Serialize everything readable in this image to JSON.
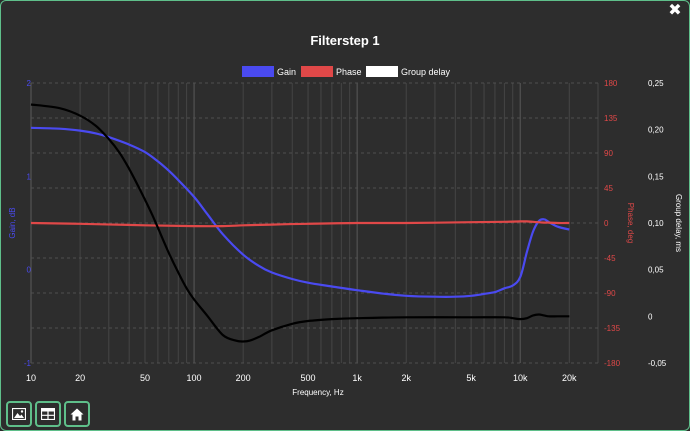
{
  "window": {
    "close_label": "✖"
  },
  "toolbar": [
    {
      "name": "image-button",
      "icon": "image-icon"
    },
    {
      "name": "table-button",
      "icon": "table-icon"
    },
    {
      "name": "home-button",
      "icon": "home-icon"
    }
  ],
  "chart_data": {
    "type": "line",
    "title": "Filterstep 1",
    "xlabel": "Frequency, Hz",
    "x_scale": "log",
    "xlim": [
      10,
      30000
    ],
    "x_ticks": [
      10,
      20,
      50,
      100,
      200,
      500,
      1000,
      2000,
      5000,
      10000,
      20000
    ],
    "x_tick_labels": [
      "10",
      "20",
      "50",
      "100",
      "200",
      "500",
      "1k",
      "2k",
      "5k",
      "10k",
      "20k"
    ],
    "axes": {
      "gain": {
        "label": "Gain, dB",
        "range": [
          -1,
          2
        ],
        "ticks": [
          -1,
          0,
          1,
          2
        ],
        "tick_labels": [
          "-1",
          "0",
          "1",
          "2"
        ],
        "color": "#4a4af0"
      },
      "phase": {
        "label": "Phase, deg",
        "range": [
          -180,
          180
        ],
        "ticks": [
          -180,
          -135,
          -90,
          -45,
          0,
          45,
          90,
          135,
          180
        ],
        "tick_labels": [
          "-180",
          "-135",
          "-90",
          "-45",
          "0",
          "45",
          "90",
          "135",
          "180"
        ],
        "color": "#e04848"
      },
      "delay": {
        "label": "Group delay, ms",
        "range": [
          -0.05,
          0.25
        ],
        "ticks": [
          -0.05,
          0,
          0.05,
          0.1,
          0.15,
          0.2,
          0.25
        ],
        "tick_labels": [
          "-0,05",
          "0",
          "0,05",
          "0,10",
          "0,15",
          "0,20",
          "0,25"
        ],
        "color": "#ffffff"
      }
    },
    "legend": {
      "placement": "top-center"
    },
    "grid": true,
    "series": [
      {
        "name": "Gain",
        "axis": "gain",
        "color": "#4a4af0",
        "x": [
          10,
          15,
          20,
          25,
          30,
          40,
          50,
          60,
          70,
          80,
          100,
          120,
          150,
          200,
          250,
          300,
          400,
          500,
          700,
          1000,
          1500,
          2000,
          3000,
          4000,
          5000,
          6000,
          7000,
          8000,
          9000,
          10000,
          11000,
          12000,
          13000,
          14000,
          15000,
          17000,
          20000
        ],
        "y": [
          1.52,
          1.51,
          1.49,
          1.46,
          1.42,
          1.34,
          1.26,
          1.16,
          1.06,
          0.96,
          0.78,
          0.6,
          0.38,
          0.16,
          0.04,
          -0.03,
          -0.1,
          -0.14,
          -0.18,
          -0.22,
          -0.26,
          -0.28,
          -0.29,
          -0.29,
          -0.28,
          -0.26,
          -0.24,
          -0.2,
          -0.17,
          -0.08,
          0.19,
          0.41,
          0.52,
          0.54,
          0.51,
          0.46,
          0.43
        ]
      },
      {
        "name": "Phase",
        "axis": "phase",
        "color": "#e04848",
        "x": [
          10,
          20,
          50,
          100,
          150,
          200,
          300,
          500,
          1000,
          2000,
          5000,
          8000,
          10000,
          11000,
          12000,
          13000,
          14000,
          15000,
          17000,
          20000
        ],
        "y": [
          0,
          -1,
          -3,
          -4,
          -4,
          -3,
          -2,
          -1,
          0,
          0,
          1,
          1.5,
          2,
          2,
          1.5,
          1,
          0.5,
          0.5,
          0,
          0
        ]
      },
      {
        "name": "Group delay",
        "axis": "delay",
        "color": "#000000",
        "x": [
          10,
          15,
          20,
          25,
          30,
          35,
          40,
          45,
          50,
          55,
          60,
          70,
          80,
          90,
          100,
          120,
          150,
          180,
          200,
          220,
          250,
          300,
          400,
          500,
          700,
          1000,
          2000,
          5000,
          8000,
          9000,
          10000,
          11000,
          12000,
          13000,
          14000,
          15000,
          17000,
          20000
        ],
        "y": [
          0.227,
          0.223,
          0.215,
          0.204,
          0.19,
          0.175,
          0.158,
          0.141,
          0.125,
          0.11,
          0.095,
          0.068,
          0.047,
          0.03,
          0.018,
          0.001,
          -0.02,
          -0.026,
          -0.027,
          -0.026,
          -0.022,
          -0.015,
          -0.008,
          -0.005,
          -0.003,
          -0.002,
          -0.001,
          -0.001,
          -0.001,
          -0.002,
          -0.003,
          -0.002,
          0.001,
          0.002,
          0.001,
          0,
          0,
          0
        ]
      }
    ]
  }
}
